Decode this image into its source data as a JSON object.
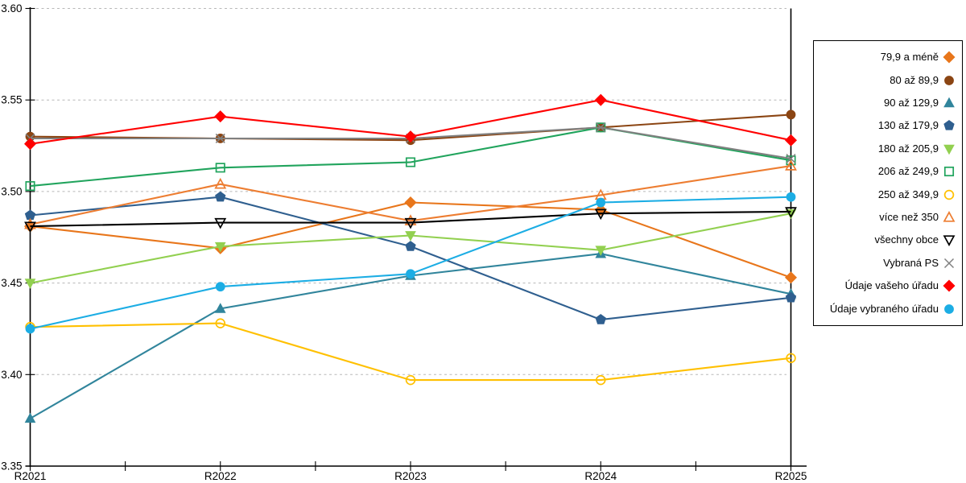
{
  "chart_data": {
    "type": "line",
    "title": "",
    "xlabel": "",
    "ylabel": "",
    "categories": [
      "R2021",
      "R2022",
      "R2023",
      "R2024",
      "R2025"
    ],
    "ylim": [
      3.35,
      3.6
    ],
    "ytick_step": 0.05,
    "ytick_labels": [
      "3.35",
      "3.40",
      "3.45",
      "3.50",
      "3.55",
      "3.60"
    ],
    "grid": "horizontal-dashed",
    "gridline_color": "#b8b8b8",
    "axis_color": "#000000",
    "legend_position": "right",
    "series": [
      {
        "name": "79,9 a méně",
        "color": "#e8761b",
        "marker": "diamond",
        "fill": "solid",
        "values": [
          3.481,
          3.469,
          3.494,
          3.49,
          3.453
        ]
      },
      {
        "name": "80 až 89,9",
        "color": "#8b4513",
        "marker": "circle",
        "fill": "solid",
        "values": [
          3.53,
          3.529,
          3.528,
          3.535,
          3.542
        ]
      },
      {
        "name": "90 až 129,9",
        "color": "#31859c",
        "marker": "triangle-up",
        "fill": "solid",
        "values": [
          3.376,
          3.436,
          3.454,
          3.466,
          3.444
        ]
      },
      {
        "name": "130 až 179,9",
        "color": "#2f5f8f",
        "marker": "pentagon",
        "fill": "solid",
        "values": [
          3.487,
          3.497,
          3.47,
          3.43,
          3.442
        ]
      },
      {
        "name": "180 až 205,9",
        "color": "#92d050",
        "marker": "triangle-down",
        "fill": "solid",
        "values": [
          3.45,
          3.47,
          3.476,
          3.468,
          3.488
        ]
      },
      {
        "name": "206 až 249,9",
        "color": "#21a45d",
        "marker": "square",
        "fill": "hollow",
        "values": [
          3.503,
          3.513,
          3.516,
          3.535,
          3.517
        ]
      },
      {
        "name": "250 až 349,9",
        "color": "#ffc000",
        "marker": "circle",
        "fill": "hollow",
        "values": [
          3.426,
          3.428,
          3.397,
          3.397,
          3.409
        ]
      },
      {
        "name": "více než 350",
        "color": "#ed7d31",
        "marker": "triangle-up",
        "fill": "hollow",
        "values": [
          3.482,
          3.504,
          3.484,
          3.498,
          3.514
        ]
      },
      {
        "name": "všechny obce",
        "color": "#000000",
        "marker": "triangle-down",
        "fill": "hollow",
        "values": [
          3.481,
          3.483,
          3.483,
          3.488,
          3.489
        ]
      },
      {
        "name": "Vybraná PS",
        "color": "#808080",
        "marker": "x",
        "fill": "hollow",
        "values": [
          3.529,
          3.529,
          3.529,
          3.535,
          3.518
        ]
      },
      {
        "name": "Údaje vašeho úřadu",
        "color": "#ff0000",
        "marker": "diamond",
        "fill": "solid",
        "values": [
          3.526,
          3.541,
          3.53,
          3.55,
          3.528
        ]
      },
      {
        "name": "Údaje vybraného úřadu",
        "color": "#1cade4",
        "marker": "circle",
        "fill": "solid",
        "values": [
          3.425,
          3.448,
          3.455,
          3.494,
          3.497
        ]
      }
    ]
  }
}
